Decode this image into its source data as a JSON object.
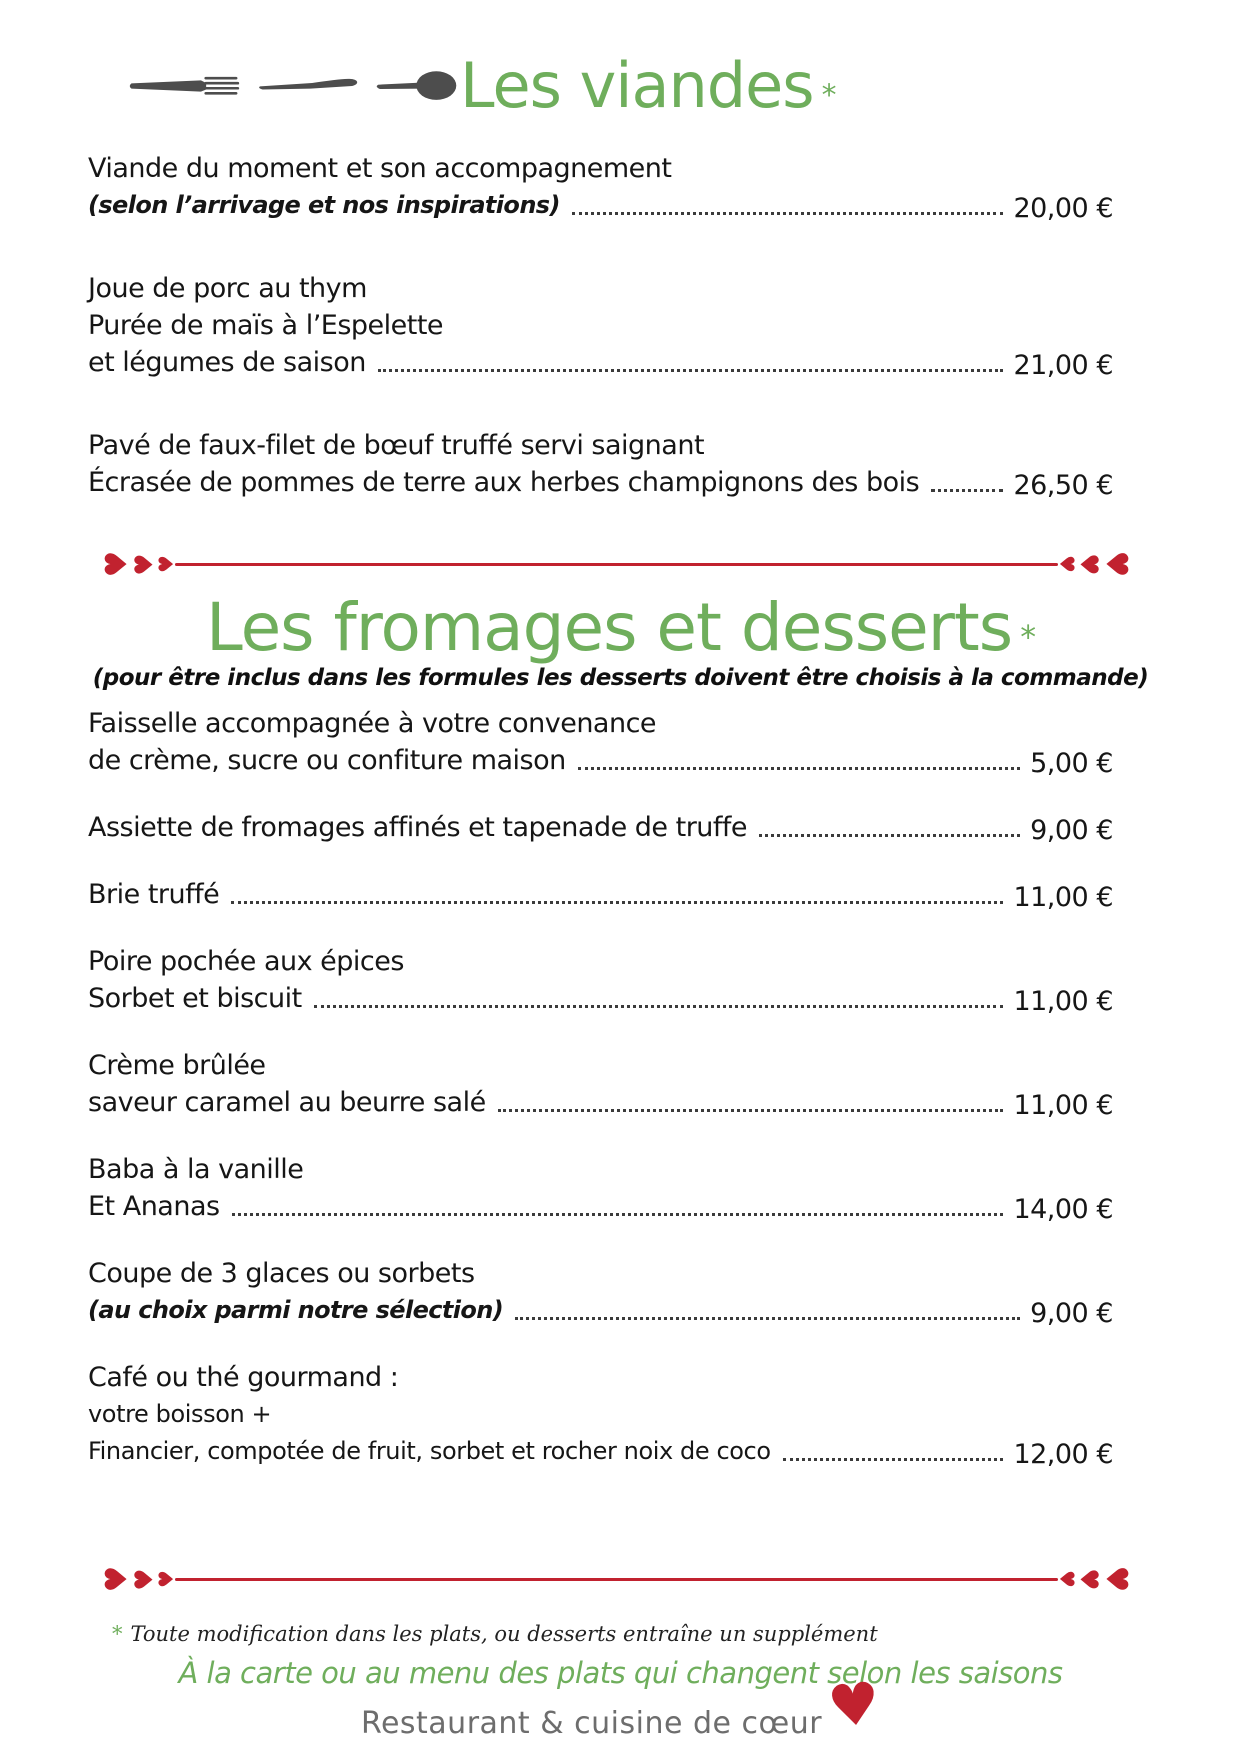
{
  "page": {
    "accent_green": "#6fae5c",
    "accent_red": "#c1222f",
    "text_color": "#161616",
    "gray_text": "#6d6d6d"
  },
  "icons": {
    "cutlery": "fork-knife-spoon",
    "divider_heart": "♥"
  },
  "sections": [
    {
      "title": "Les viandes",
      "title_asterisk": "*",
      "items": [
        {
          "lines": [
            {
              "text": "Viande du moment et son accompagnement",
              "style": "main"
            }
          ],
          "leader": {
            "text": "(selon l’arrivage et nos inspirations)",
            "style": "note",
            "price": "20,00 €"
          }
        },
        {
          "lines": [
            {
              "text": "Joue de porc au thym",
              "style": "main"
            },
            {
              "text": "Purée de maïs à l’Espelette",
              "style": "main"
            }
          ],
          "leader": {
            "text": "et légumes de saison",
            "style": "main",
            "price": "21,00 €"
          }
        },
        {
          "lines": [
            {
              "text": "Pavé de faux-filet de bœuf truffé servi saignant",
              "style": "main"
            }
          ],
          "leader": {
            "text": "Écrasée de pommes de terre aux herbes champignons des bois",
            "style": "main",
            "price": "26,50 €"
          }
        }
      ]
    },
    {
      "title": "Les fromages et desserts",
      "title_asterisk": "*",
      "subtitle": "(pour être inclus dans les formules les desserts doivent être choisis à la commande)",
      "items": [
        {
          "lines": [
            {
              "text": "Faisselle accompagnée à votre convenance",
              "style": "main"
            }
          ],
          "leader": {
            "text": "de crème, sucre ou confiture maison",
            "style": "main",
            "price": "5,00 €"
          }
        },
        {
          "lines": [],
          "leader": {
            "text": "Assiette de fromages affinés et tapenade de truffe",
            "style": "main",
            "price": "9,00 €"
          }
        },
        {
          "lines": [],
          "leader": {
            "text": "Brie truffé",
            "style": "main",
            "price": "11,00 €"
          }
        },
        {
          "lines": [
            {
              "text": "Poire pochée aux épices",
              "style": "main"
            }
          ],
          "leader": {
            "text": "Sorbet et biscuit",
            "style": "main",
            "price": "11,00 €"
          }
        },
        {
          "lines": [
            {
              "text": "Crème brûlée",
              "style": "main"
            }
          ],
          "leader": {
            "text": "saveur caramel au beurre salé",
            "style": "main",
            "price": "11,00 €"
          }
        },
        {
          "lines": [
            {
              "text": "Baba à la vanille",
              "style": "main"
            }
          ],
          "leader": {
            "text": "Et Ananas",
            "style": "main",
            "price": "14,00 €"
          }
        },
        {
          "lines": [
            {
              "text": "Coupe de 3 glaces ou sorbets",
              "style": "main"
            }
          ],
          "leader": {
            "text": "(au choix parmi notre sélection)",
            "style": "note",
            "price": "9,00 €"
          }
        },
        {
          "lines": [
            {
              "text": "Café ou thé gourmand :",
              "style": "main"
            },
            {
              "text": "votre boisson +",
              "style": "small"
            }
          ],
          "leader": {
            "text": "Financier, compotée de fruit, sorbet et rocher noix de coco",
            "style": "small",
            "price": "12,00 €"
          }
        }
      ]
    }
  ],
  "footer": {
    "footnote_asterisk": "*",
    "footnote": "Toute modification dans les plats, ou desserts entraîne un supplément",
    "tagline": "À la carte ou au menu des plats qui changent selon les saisons",
    "brand": "Restaurant & cuisine de cœur",
    "heart_icon": "♥"
  }
}
